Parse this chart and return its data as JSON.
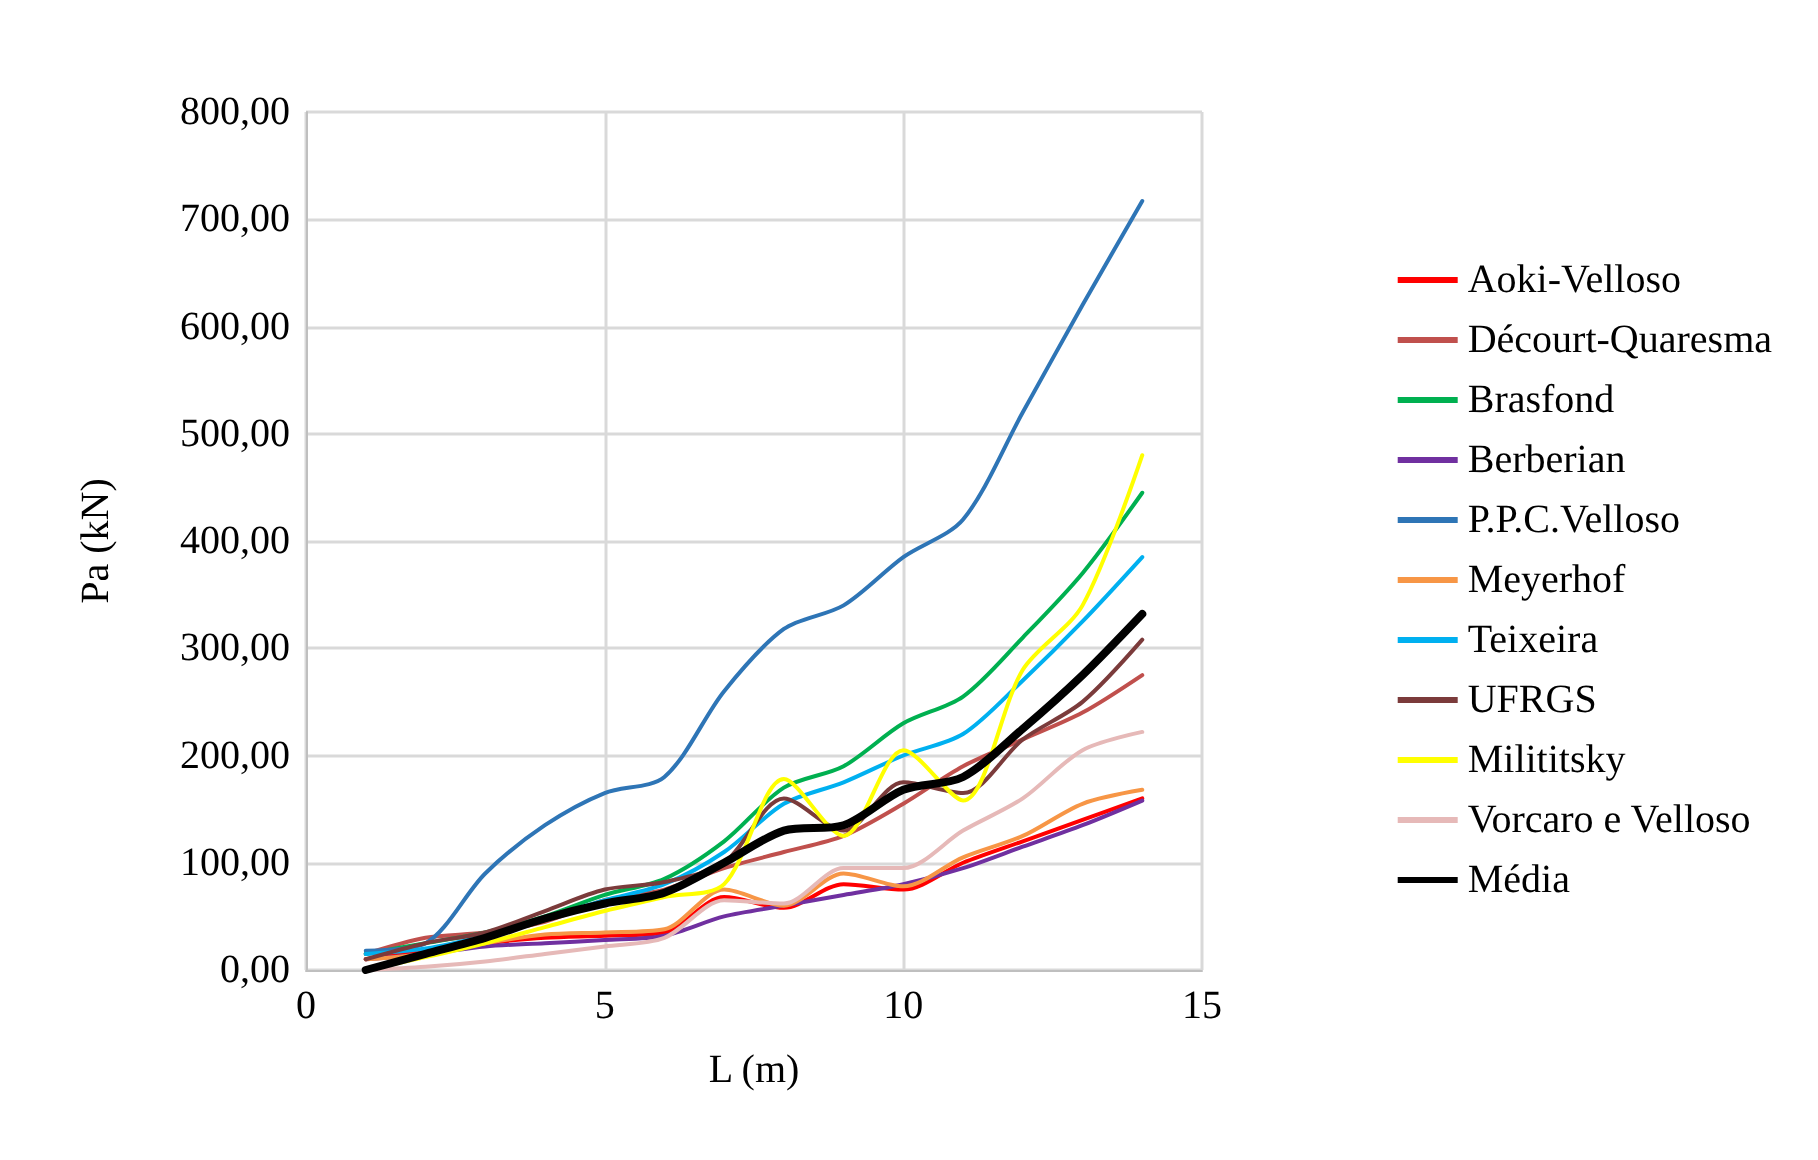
{
  "chart_data": {
    "type": "line",
    "xlabel": "L (m)",
    "ylabel": "Pa (kN)",
    "x": [
      1,
      2,
      3,
      4,
      5,
      6,
      7,
      8,
      9,
      10,
      11,
      12,
      13,
      14
    ],
    "xlim": [
      0,
      15
    ],
    "xticks": [
      0,
      5,
      10,
      15
    ],
    "ylim": [
      0,
      800
    ],
    "yticks": [
      {
        "value": 0,
        "label": "0,00"
      },
      {
        "value": 100,
        "label": "100,00"
      },
      {
        "value": 200,
        "label": "200,00"
      },
      {
        "value": 300,
        "label": "300,00"
      },
      {
        "value": 400,
        "label": "400,00"
      },
      {
        "value": 500,
        "label": "500,00"
      },
      {
        "value": 600,
        "label": "600,00"
      },
      {
        "value": 700,
        "label": "700,00"
      },
      {
        "value": 800,
        "label": "800,00"
      }
    ],
    "grid": true,
    "legend": "right",
    "marker": "none",
    "line_style": "solid",
    "series": [
      {
        "name": "Aoki-Velloso",
        "color": "#ff0000",
        "values": [
          10,
          18,
          25,
          30,
          32,
          35,
          68,
          58,
          80,
          75,
          100,
          120,
          140,
          160
        ]
      },
      {
        "name": "Décourt-Quaresma",
        "color": "#c0504d",
        "values": [
          15,
          30,
          35,
          45,
          65,
          75,
          95,
          110,
          125,
          155,
          190,
          215,
          240,
          275
        ]
      },
      {
        "name": "Brasfond",
        "color": "#00b050",
        "values": [
          15,
          25,
          35,
          50,
          70,
          85,
          120,
          170,
          190,
          230,
          255,
          310,
          370,
          445
        ]
      },
      {
        "name": "Berberian",
        "color": "#7030a0",
        "values": [
          10,
          15,
          22,
          25,
          28,
          32,
          50,
          60,
          70,
          80,
          95,
          115,
          135,
          158
        ]
      },
      {
        "name": "P.P.C.Velloso",
        "color": "#2e75b6",
        "values": [
          18,
          25,
          90,
          135,
          165,
          180,
          260,
          318,
          340,
          385,
          420,
          520,
          620,
          717
        ]
      },
      {
        "name": "Meyerhof",
        "color": "#f79646",
        "values": [
          10,
          15,
          25,
          33,
          35,
          38,
          75,
          60,
          90,
          78,
          105,
          125,
          155,
          168
        ]
      },
      {
        "name": "Teixeira",
        "color": "#00b0f0",
        "values": [
          15,
          20,
          32,
          48,
          65,
          80,
          110,
          155,
          175,
          200,
          220,
          270,
          325,
          385
        ]
      },
      {
        "name": "UFRGS",
        "color": "#7b3b3b",
        "values": [
          10,
          25,
          35,
          55,
          75,
          82,
          100,
          160,
          130,
          175,
          165,
          215,
          250,
          308
        ]
      },
      {
        "name": "Milititsky",
        "color": "#ffff00",
        "values": [
          0,
          12,
          25,
          40,
          55,
          68,
          80,
          178,
          125,
          205,
          158,
          280,
          340,
          480
        ]
      },
      {
        "name": "Vorcaro e Velloso",
        "color": "#e6b9b8",
        "values": [
          0,
          3,
          8,
          15,
          22,
          30,
          65,
          62,
          95,
          95,
          130,
          160,
          205,
          222
        ]
      },
      {
        "name": "Média",
        "color": "#000000",
        "values": [
          0,
          15,
          30,
          48,
          62,
          72,
          100,
          130,
          135,
          168,
          180,
          225,
          275,
          332
        ]
      }
    ]
  }
}
